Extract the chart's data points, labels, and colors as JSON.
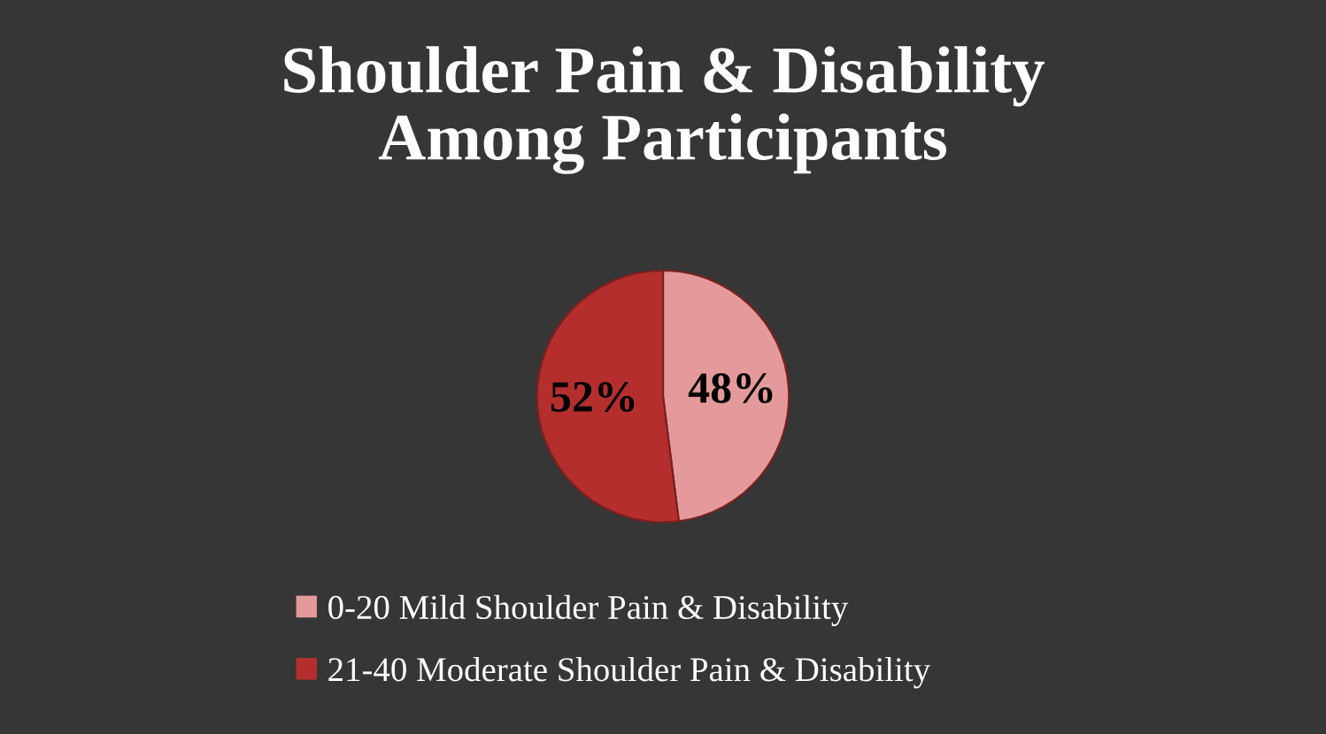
{
  "chart_data": {
    "type": "pie",
    "title": "Shoulder Pain & Disability\nAmong Participants",
    "categories": [
      "0-20 Mild Shoulder Pain & Disability",
      "21-40 Moderate Shoulder Pain & Disability"
    ],
    "values": [
      48,
      52
    ],
    "colors": [
      "#e49a9a",
      "#b52e2e"
    ],
    "value_labels": [
      "48%",
      "52%"
    ],
    "legend": "bottom"
  }
}
